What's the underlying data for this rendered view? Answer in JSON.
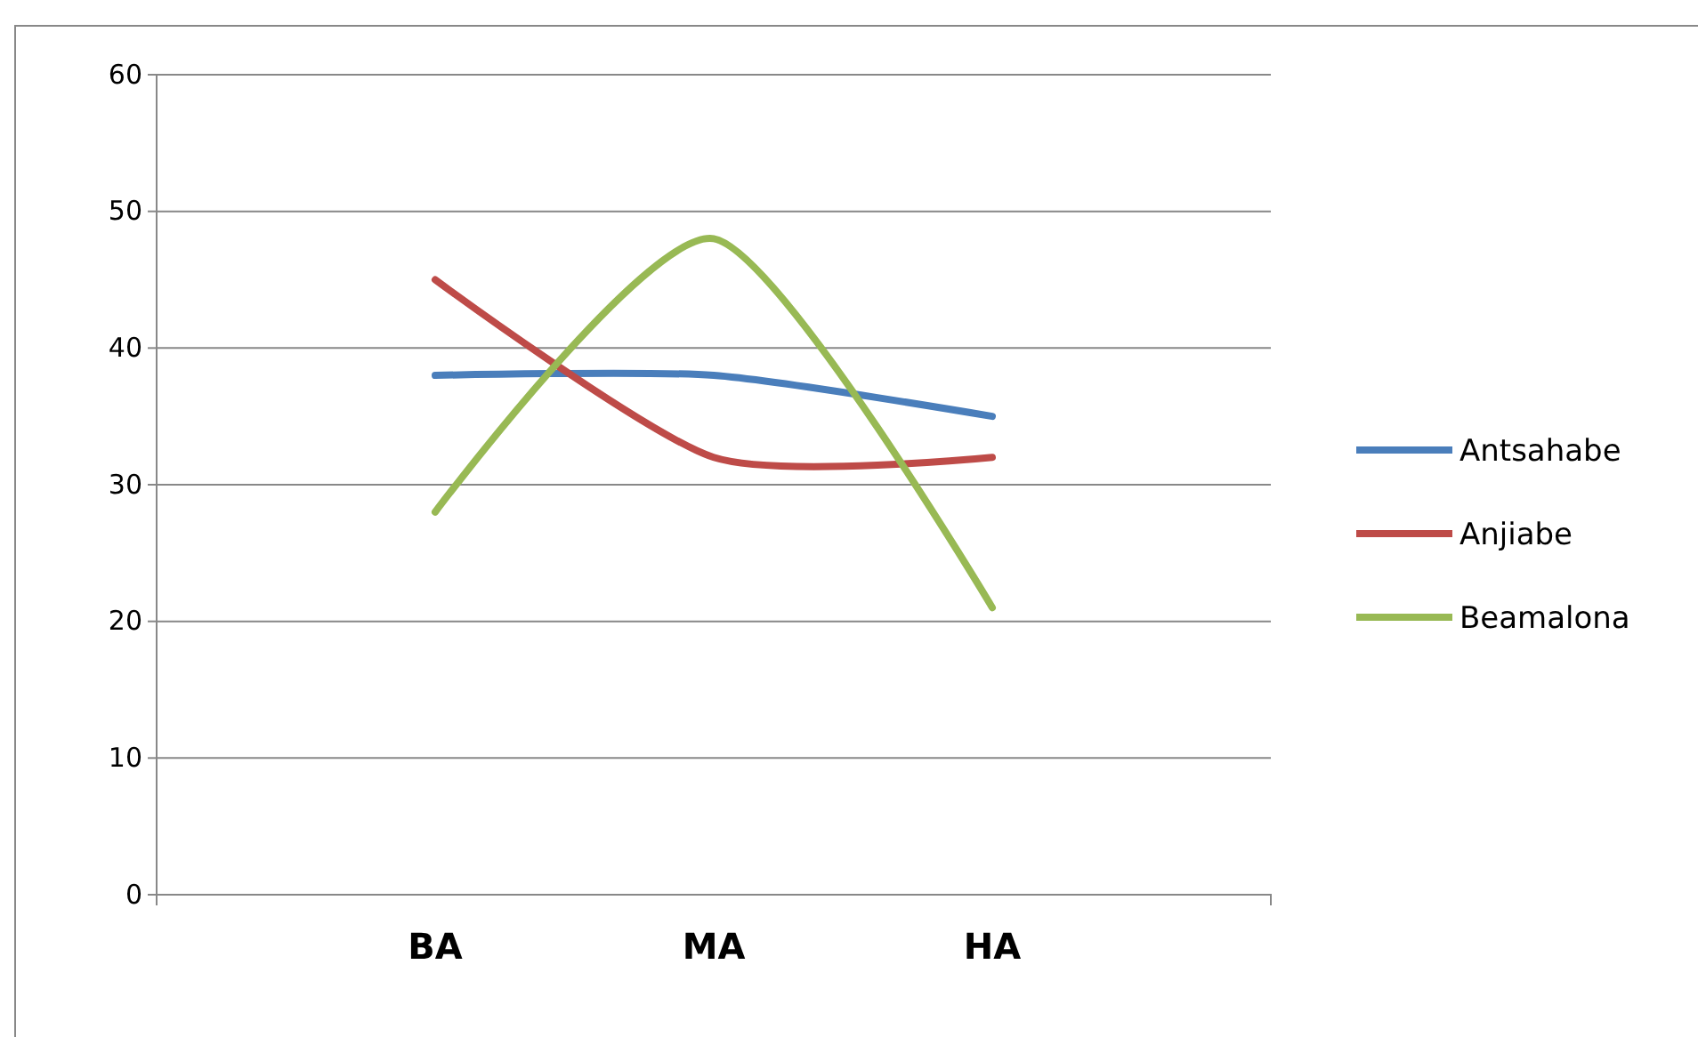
{
  "chart_data": {
    "type": "line",
    "categories": [
      "BA",
      "MA",
      "HA"
    ],
    "series": [
      {
        "name": "Antsahabe",
        "color": "#4a7ebb",
        "values": [
          38,
          38,
          35
        ]
      },
      {
        "name": "Anjiabe",
        "color": "#be4b48",
        "values": [
          45,
          32,
          32
        ]
      },
      {
        "name": "Beamalona",
        "color": "#98b954",
        "values": [
          28,
          48,
          21
        ]
      }
    ],
    "ylim": [
      0,
      60
    ],
    "yticks": [
      0,
      10,
      20,
      30,
      40,
      50,
      60
    ],
    "grid": "y",
    "legend": "right",
    "marker": "none",
    "line_style": "solid"
  }
}
